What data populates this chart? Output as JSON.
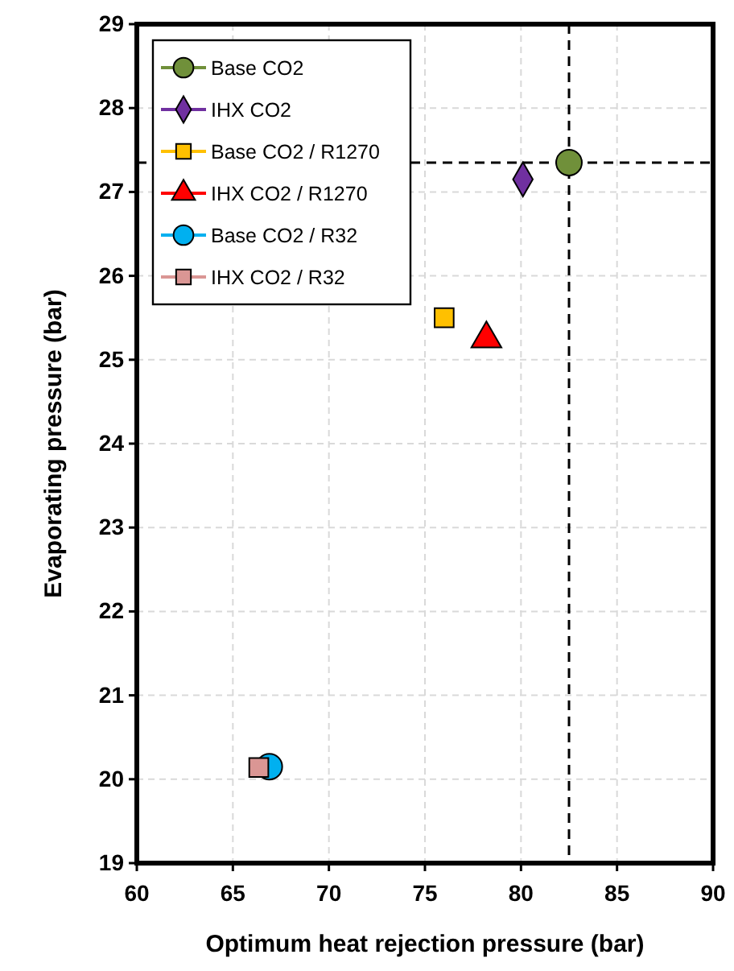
{
  "chart_data": {
    "type": "scatter",
    "xlabel": "Optimum heat rejection pressure (bar)",
    "ylabel": "Evaporating pressure (bar)",
    "xlim": [
      60,
      90
    ],
    "xticks": [
      60,
      65,
      70,
      75,
      80,
      85,
      90
    ],
    "ylim": [
      19,
      29
    ],
    "yticks": [
      19,
      20,
      21,
      22,
      23,
      24,
      25,
      26,
      27,
      28,
      29
    ],
    "grid": true,
    "legend": "top left",
    "ref_lines": [
      {
        "axis": "x",
        "value": 82.5,
        "color": "#000000",
        "line_style": "dashed"
      },
      {
        "axis": "y",
        "value": 27.35,
        "color": "#000000",
        "line_style": "dashed"
      }
    ],
    "series": [
      {
        "name": "Base CO2",
        "color": "#70903a",
        "marker": "circle",
        "x": [
          82.5
        ],
        "values": [
          27.35
        ]
      },
      {
        "name": "IHX CO2",
        "color": "#7030a0",
        "marker": "diamond",
        "x": [
          80.1
        ],
        "values": [
          27.15
        ]
      },
      {
        "name": "Base CO2 / R1270",
        "color": "#ffc000",
        "marker": "square",
        "x": [
          76.0
        ],
        "values": [
          25.5
        ]
      },
      {
        "name": "IHX CO2 / R1270",
        "color": "#ff0000",
        "marker": "triangle",
        "x": [
          78.2
        ],
        "values": [
          25.25
        ]
      },
      {
        "name": "Base CO2 / R32",
        "color": "#00b0f0",
        "marker": "circle",
        "x": [
          66.9
        ],
        "values": [
          20.15
        ]
      },
      {
        "name": "IHX CO2 / R32",
        "color": "#da9694",
        "marker": "square",
        "x": [
          66.35
        ],
        "values": [
          20.14
        ]
      }
    ]
  }
}
